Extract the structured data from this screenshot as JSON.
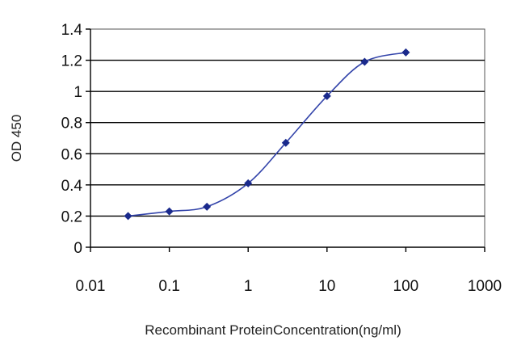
{
  "chart_data": {
    "type": "line",
    "title": "",
    "xlabel": "Recombinant ProteinConcentration(ng/ml)",
    "ylabel": "OD 450",
    "x_scale": "log",
    "xlim": [
      0.01,
      1000
    ],
    "ylim": [
      0,
      1.4
    ],
    "x_ticks": [
      "0.01",
      "0.1",
      "1",
      "10",
      "100",
      "1000"
    ],
    "y_ticks": [
      "0",
      "0.2",
      "0.4",
      "0.6",
      "0.8",
      "1",
      "1.2",
      "1.4"
    ],
    "grid": "horizontal",
    "legend": "none",
    "series": [
      {
        "x": [
          0.03,
          0.1,
          0.3,
          1,
          3,
          10,
          30,
          100
        ],
        "y": [
          0.2,
          0.23,
          0.26,
          0.41,
          0.67,
          0.97,
          1.19,
          1.25
        ]
      }
    ],
    "colors": {
      "line": "#3344aa",
      "marker": "#1a2a8c"
    }
  }
}
